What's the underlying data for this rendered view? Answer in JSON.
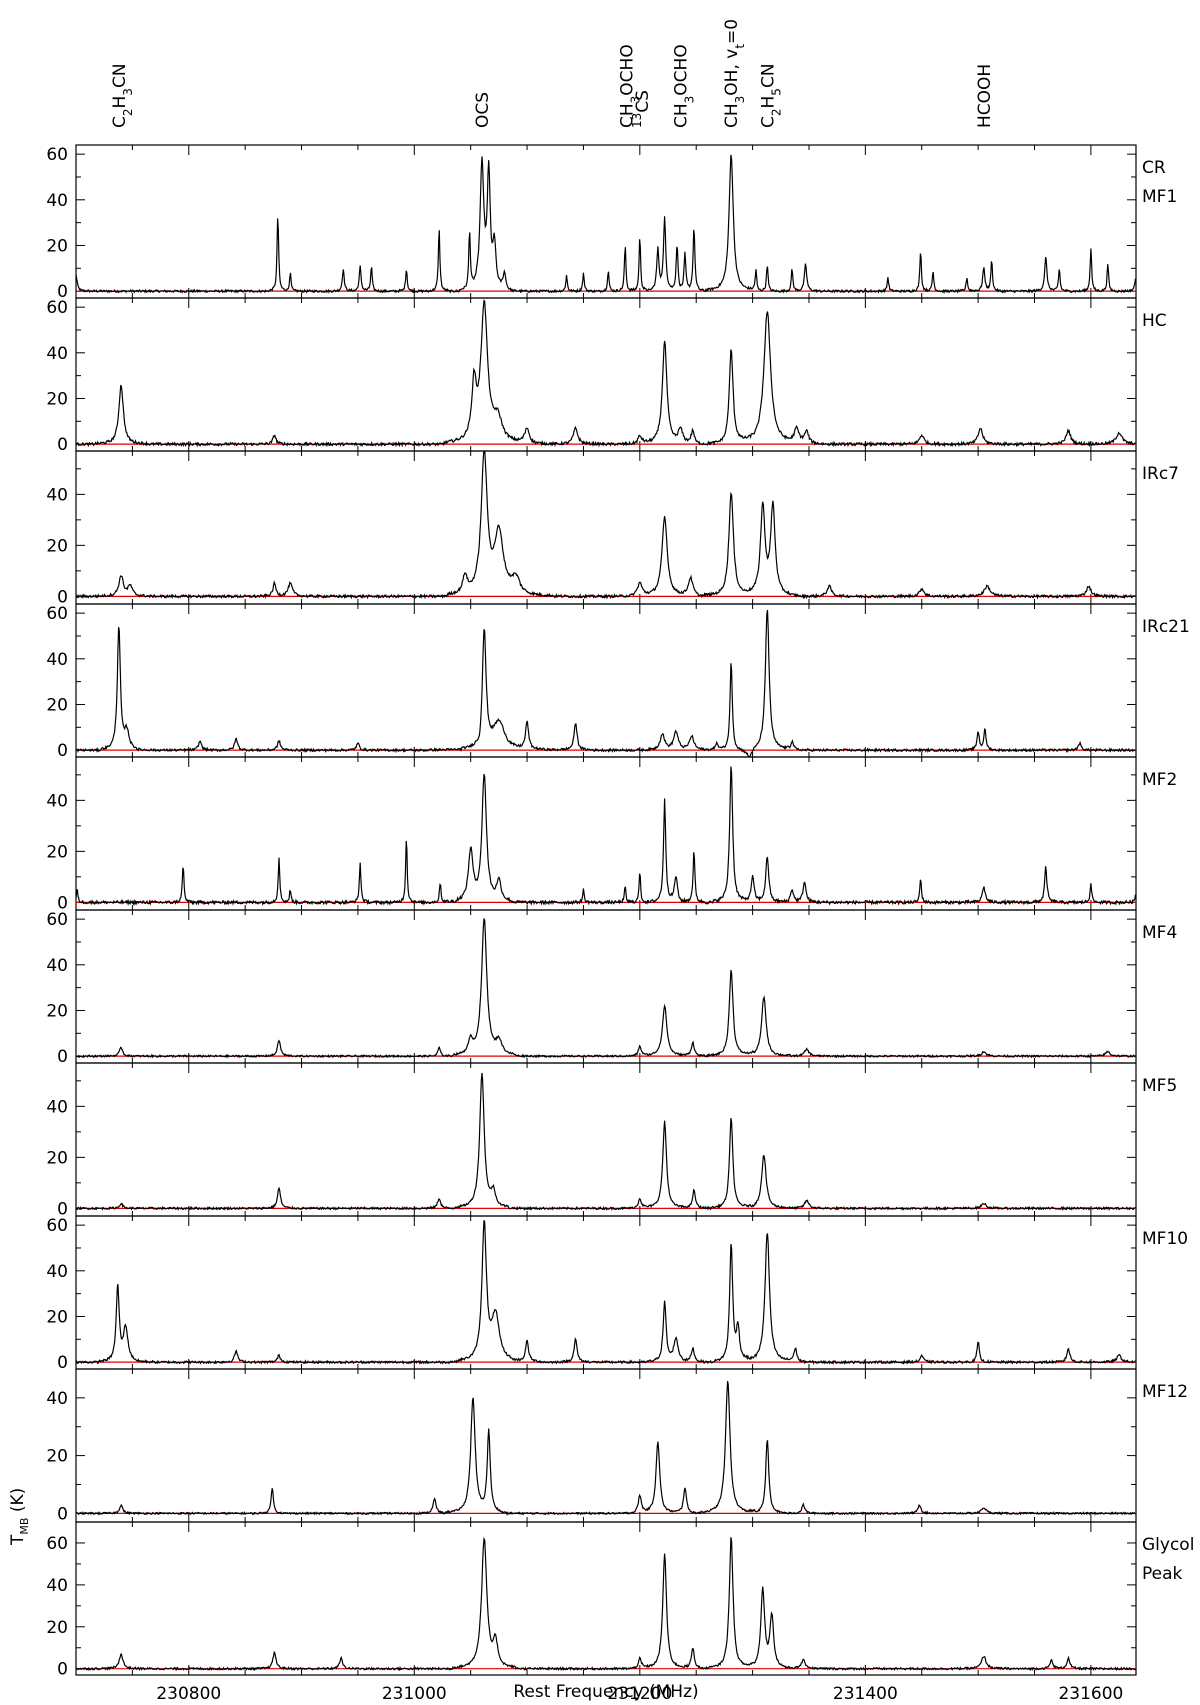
{
  "chart_data": {
    "type": "line",
    "xlabel": "Rest Frequency (MHz)",
    "ylabel": "T",
    "ylabel_sub": "MB",
    "ylabel_unit": " (K)",
    "xlim": [
      230700,
      231640
    ],
    "xticks": [
      230800,
      231000,
      231200,
      231400,
      231600
    ],
    "baseline_color": "#e00000",
    "line_color": "#000000",
    "molecules": [
      {
        "x": 230738,
        "parts": [
          [
            "C",
            ""
          ],
          [
            "2",
            "sub"
          ],
          [
            "H",
            ""
          ],
          [
            "3",
            "sub"
          ],
          [
            "CN",
            ""
          ]
        ]
      },
      {
        "x": 231060,
        "parts": [
          [
            "OCS",
            ""
          ]
        ]
      },
      {
        "x": 231188,
        "parts": [
          [
            "CH",
            ""
          ],
          [
            "3",
            "sub"
          ],
          [
            "OCHO",
            ""
          ]
        ]
      },
      {
        "x": 231202,
        "parts": [
          [
            "13",
            "sup"
          ],
          [
            "CS",
            ""
          ]
        ]
      },
      {
        "x": 231236,
        "parts": [
          [
            "CH",
            ""
          ],
          [
            "3",
            "sub"
          ],
          [
            "OCHO",
            ""
          ]
        ]
      },
      {
        "x": 231281,
        "parts": [
          [
            "CH",
            ""
          ],
          [
            "3",
            "sub"
          ],
          [
            "OH, v",
            ""
          ],
          [
            "t",
            "sub"
          ],
          [
            "=0",
            ""
          ]
        ]
      },
      {
        "x": 231313,
        "parts": [
          [
            "C",
            ""
          ],
          [
            "2",
            "sub"
          ],
          [
            "H",
            ""
          ],
          [
            "5",
            "sub"
          ],
          [
            "CN",
            ""
          ]
        ]
      },
      {
        "x": 231505,
        "parts": [
          [
            "HCOOH",
            ""
          ]
        ]
      }
    ],
    "panels": [
      {
        "label": [
          "CR",
          "MF1"
        ],
        "yticks": [
          0,
          20,
          40,
          60
        ],
        "ylim": [
          -3,
          64
        ],
        "noise": 0.5,
        "peaks": [
          [
            230700,
            7,
            1.5
          ],
          [
            230879,
            34,
            1
          ],
          [
            230890,
            8,
            1
          ],
          [
            230937,
            10,
            1.2
          ],
          [
            230952,
            11,
            1.2
          ],
          [
            230962,
            11,
            1
          ],
          [
            230993,
            10,
            1
          ],
          [
            231022,
            28,
            1
          ],
          [
            231049,
            26,
            1
          ],
          [
            231060,
            55,
            2.5
          ],
          [
            231066,
            50,
            2
          ],
          [
            231071,
            19,
            2
          ],
          [
            231080,
            7,
            2
          ],
          [
            231135,
            7,
            1
          ],
          [
            231150,
            8,
            1
          ],
          [
            231172,
            9,
            1
          ],
          [
            231187,
            20,
            1
          ],
          [
            231200,
            24,
            1
          ],
          [
            231216,
            18,
            1.5
          ],
          [
            231222,
            32,
            1.5
          ],
          [
            231233,
            20,
            1.2
          ],
          [
            231240,
            16,
            1.2
          ],
          [
            231248,
            28,
            1.2
          ],
          [
            231281,
            60,
            2.8
          ],
          [
            231303,
            9,
            1
          ],
          [
            231313,
            12,
            1
          ],
          [
            231335,
            10,
            1
          ],
          [
            231347,
            12,
            1.5
          ],
          [
            231420,
            6,
            1
          ],
          [
            231449,
            18,
            1
          ],
          [
            231460,
            9,
            1
          ],
          [
            231490,
            6,
            1
          ],
          [
            231505,
            10,
            1.5
          ],
          [
            231512,
            14,
            1
          ],
          [
            231560,
            15,
            1.5
          ],
          [
            231572,
            10,
            1
          ],
          [
            231600,
            19,
            1
          ],
          [
            231615,
            12,
            1
          ],
          [
            231640,
            6,
            1.5
          ]
        ]
      },
      {
        "label": [
          "HC"
        ],
        "yticks": [
          0,
          20,
          40,
          60
        ],
        "ylim": [
          -3,
          64
        ],
        "noise": 0.6,
        "peaks": [
          [
            230740,
            26,
            3
          ],
          [
            230876,
            4,
            2
          ],
          [
            231053,
            24,
            3
          ],
          [
            231062,
            60,
            4.5
          ],
          [
            231074,
            10,
            6
          ],
          [
            231100,
            7,
            3
          ],
          [
            231143,
            7,
            3
          ],
          [
            231200,
            3,
            3
          ],
          [
            231222,
            45,
            3
          ],
          [
            231236,
            6,
            3
          ],
          [
            231247,
            6,
            2
          ],
          [
            231281,
            41,
            2.5
          ],
          [
            231313,
            58,
            4.5
          ],
          [
            231339,
            6,
            3
          ],
          [
            231348,
            5,
            3
          ],
          [
            231450,
            4,
            3
          ],
          [
            231502,
            7,
            3
          ],
          [
            231580,
            6,
            3
          ],
          [
            231625,
            5,
            4
          ]
        ]
      },
      {
        "label": [
          "IRc7"
        ],
        "yticks": [
          0,
          20,
          40
        ],
        "ylim": [
          -3,
          57
        ],
        "noise": 0.5,
        "peaks": [
          [
            230740,
            8,
            3
          ],
          [
            230748,
            4,
            3
          ],
          [
            230876,
            5,
            2
          ],
          [
            230890,
            5,
            3
          ],
          [
            231045,
            7,
            3
          ],
          [
            231062,
            55,
            4
          ],
          [
            231075,
            24,
            6
          ],
          [
            231090,
            6,
            6
          ],
          [
            231200,
            5,
            3
          ],
          [
            231222,
            31,
            3.5
          ],
          [
            231245,
            7,
            3
          ],
          [
            231281,
            41,
            3
          ],
          [
            231309,
            35,
            3
          ],
          [
            231318,
            35,
            3
          ],
          [
            231368,
            4,
            3
          ],
          [
            231450,
            3,
            3
          ],
          [
            231508,
            4,
            4
          ],
          [
            231598,
            4,
            3
          ]
        ]
      },
      {
        "label": [
          "IRc21"
        ],
        "yticks": [
          0,
          20,
          40,
          60
        ],
        "ylim": [
          -3,
          64
        ],
        "noise": 0.5,
        "peaks": [
          [
            230738,
            54,
            2
          ],
          [
            230745,
            8,
            3
          ],
          [
            230810,
            4,
            2
          ],
          [
            230842,
            5,
            2
          ],
          [
            230880,
            4,
            2
          ],
          [
            230950,
            3,
            2
          ],
          [
            231058,
            -4,
            2
          ],
          [
            231062,
            52,
            2.5
          ],
          [
            231075,
            12,
            8
          ],
          [
            231100,
            12,
            2
          ],
          [
            231143,
            12,
            2
          ],
          [
            231220,
            7,
            3
          ],
          [
            231232,
            8,
            3
          ],
          [
            231246,
            6,
            3
          ],
          [
            231268,
            3,
            2
          ],
          [
            231281,
            39,
            1.5
          ],
          [
            231297,
            -4,
            3
          ],
          [
            231313,
            62,
            2.5
          ],
          [
            231335,
            4,
            2
          ],
          [
            231500,
            8,
            1.5
          ],
          [
            231506,
            9,
            1.5
          ],
          [
            231590,
            3,
            2
          ]
        ]
      },
      {
        "label": [
          "MF2"
        ],
        "yticks": [
          0,
          20,
          40
        ],
        "ylim": [
          -3,
          57
        ],
        "noise": 0.6,
        "peaks": [
          [
            230701,
            5,
            1
          ],
          [
            230795,
            15,
            1
          ],
          [
            230880,
            18,
            1
          ],
          [
            230890,
            5,
            1
          ],
          [
            230952,
            16,
            1
          ],
          [
            230993,
            26,
            1
          ],
          [
            231023,
            8,
            1
          ],
          [
            231050,
            20,
            3
          ],
          [
            231062,
            50,
            3
          ],
          [
            231075,
            8,
            3
          ],
          [
            231150,
            5,
            1
          ],
          [
            231187,
            6,
            1
          ],
          [
            231200,
            12,
            1
          ],
          [
            231222,
            40,
            1.5
          ],
          [
            231232,
            10,
            2
          ],
          [
            231248,
            20,
            1.2
          ],
          [
            231281,
            54,
            2
          ],
          [
            231300,
            10,
            2
          ],
          [
            231313,
            18,
            2
          ],
          [
            231335,
            5,
            2
          ],
          [
            231346,
            8,
            2
          ],
          [
            231449,
            10,
            1
          ],
          [
            231505,
            6,
            2
          ],
          [
            231560,
            14,
            1.5
          ],
          [
            231600,
            8,
            1
          ],
          [
            231640,
            4,
            1
          ]
        ]
      },
      {
        "label": [
          "MF4"
        ],
        "yticks": [
          0,
          20,
          40,
          60
        ],
        "ylim": [
          -3,
          64
        ],
        "noise": 0.4,
        "peaks": [
          [
            230740,
            4,
            2
          ],
          [
            230880,
            7,
            2
          ],
          [
            231022,
            4,
            1.5
          ],
          [
            231050,
            6,
            3
          ],
          [
            231062,
            60,
            3.5
          ],
          [
            231075,
            6,
            4
          ],
          [
            231200,
            4,
            2
          ],
          [
            231222,
            22,
            3
          ],
          [
            231247,
            6,
            2
          ],
          [
            231281,
            38,
            2.5
          ],
          [
            231310,
            26,
            3
          ],
          [
            231348,
            3,
            3
          ],
          [
            231505,
            2,
            3
          ],
          [
            231615,
            2,
            3
          ]
        ]
      },
      {
        "label": [
          "MF5"
        ],
        "yticks": [
          0,
          20,
          40
        ],
        "ylim": [
          -3,
          57
        ],
        "noise": 0.4,
        "peaks": [
          [
            230740,
            2,
            2
          ],
          [
            230880,
            8,
            2
          ],
          [
            231022,
            4,
            2
          ],
          [
            231060,
            53,
            3
          ],
          [
            231070,
            6,
            3
          ],
          [
            231200,
            4,
            2
          ],
          [
            231222,
            34,
            2.5
          ],
          [
            231248,
            7,
            2
          ],
          [
            231281,
            36,
            2.2
          ],
          [
            231310,
            21,
            3
          ],
          [
            231348,
            3,
            3
          ],
          [
            231505,
            2,
            3
          ]
        ]
      },
      {
        "label": [
          "MF10"
        ],
        "yticks": [
          0,
          20,
          40,
          60
        ],
        "ylim": [
          -3,
          64
        ],
        "noise": 0.5,
        "peaks": [
          [
            230737,
            33,
            2
          ],
          [
            230744,
            15,
            3
          ],
          [
            230842,
            5,
            2
          ],
          [
            230880,
            3,
            2
          ],
          [
            231062,
            60,
            3
          ],
          [
            231072,
            20,
            5
          ],
          [
            231100,
            9,
            2
          ],
          [
            231143,
            10,
            2
          ],
          [
            231222,
            26,
            2
          ],
          [
            231232,
            10,
            3
          ],
          [
            231247,
            6,
            2
          ],
          [
            231281,
            52,
            2
          ],
          [
            231287,
            15,
            2
          ],
          [
            231313,
            57,
            3
          ],
          [
            231338,
            6,
            2
          ],
          [
            231450,
            3,
            2
          ],
          [
            231500,
            9,
            1.5
          ],
          [
            231580,
            6,
            2
          ],
          [
            231625,
            3,
            3
          ]
        ]
      },
      {
        "label": [
          "MF12"
        ],
        "yticks": [
          0,
          20,
          40
        ],
        "ylim": [
          -3,
          50
        ],
        "noise": 0.3,
        "peaks": [
          [
            230740,
            3,
            2
          ],
          [
            230874,
            9,
            1.5
          ],
          [
            231018,
            5,
            2
          ],
          [
            231052,
            40,
            3
          ],
          [
            231066,
            28,
            2
          ],
          [
            231200,
            6,
            2
          ],
          [
            231216,
            25,
            2.5
          ],
          [
            231240,
            9,
            2
          ],
          [
            231278,
            46,
            3
          ],
          [
            231313,
            26,
            2
          ],
          [
            231345,
            3,
            2
          ],
          [
            231448,
            3,
            2
          ],
          [
            231505,
            2,
            3
          ]
        ]
      },
      {
        "label": [
          "Glycol",
          "Peak"
        ],
        "yticks": [
          0,
          20,
          40,
          60
        ],
        "ylim": [
          -3,
          70
        ],
        "noise": 0.5,
        "peaks": [
          [
            230740,
            7,
            2.5
          ],
          [
            230876,
            8,
            2
          ],
          [
            230935,
            5,
            2
          ],
          [
            231062,
            62,
            3.5
          ],
          [
            231072,
            12,
            3
          ],
          [
            231200,
            5,
            2
          ],
          [
            231222,
            55,
            2.5
          ],
          [
            231247,
            10,
            2
          ],
          [
            231281,
            63,
            2.5
          ],
          [
            231309,
            38,
            2.5
          ],
          [
            231317,
            25,
            2.5
          ],
          [
            231345,
            4,
            3
          ],
          [
            231505,
            6,
            3
          ],
          [
            231565,
            4,
            2
          ],
          [
            231580,
            5,
            2
          ]
        ]
      }
    ]
  }
}
